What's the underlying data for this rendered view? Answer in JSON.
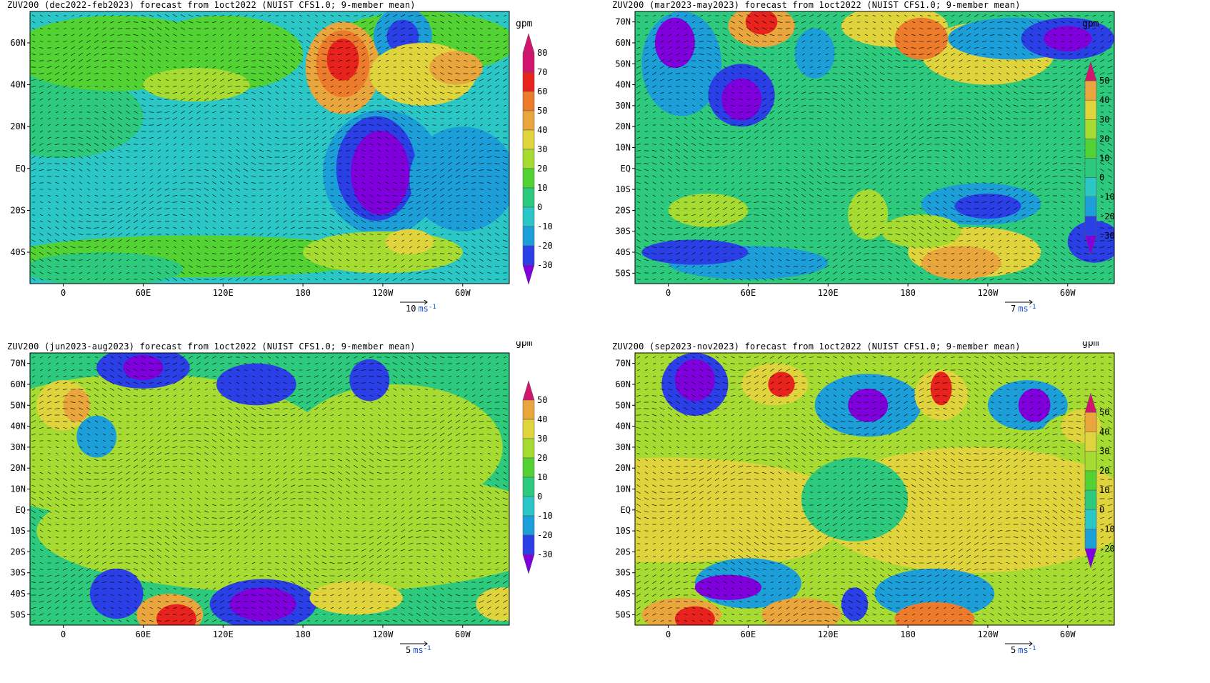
{
  "figure": {
    "panels": [
      {
        "title": "ZUV200 (dec2022-feb2023) forecast from 1oct2022 (NUIST CFS1.0; 9-member mean)",
        "unit": "gpm",
        "lat_labels": [
          "60N",
          "40N",
          "20N",
          "EQ",
          "20S",
          "40S"
        ],
        "lon_labels": [
          "0",
          "60E",
          "120E",
          "180",
          "120W",
          "60W"
        ],
        "colorbar_levels": [
          "80",
          "70",
          "60",
          "50",
          "40",
          "30",
          "20",
          "10",
          "0",
          "-10",
          "-20",
          "-30"
        ],
        "vector_ref": {
          "value": "10",
          "unit": "ms",
          "exponent": "-1"
        }
      },
      {
        "title": "ZUV200 (mar2023-may2023) forecast from 1oct2022 (NUIST CFS1.0; 9-member mean)",
        "unit": "gpm",
        "lat_labels": [
          "70N",
          "60N",
          "50N",
          "40N",
          "30N",
          "20N",
          "10N",
          "EQ",
          "10S",
          "20S",
          "30S",
          "40S",
          "50S"
        ],
        "lon_labels": [
          "0",
          "60E",
          "120E",
          "180",
          "120W",
          "60W"
        ],
        "colorbar_levels": [
          "50",
          "40",
          "30",
          "20",
          "10",
          "0",
          "-10",
          "-20",
          "-30"
        ],
        "vector_ref": {
          "value": "7",
          "unit": "ms",
          "exponent": "-1"
        }
      },
      {
        "title": "ZUV200 (jun2023-aug2023) forecast from 1oct2022 (NUIST CFS1.0; 9-member mean)",
        "unit": "gpm",
        "lat_labels": [
          "70N",
          "60N",
          "50N",
          "40N",
          "30N",
          "20N",
          "10N",
          "EQ",
          "10S",
          "20S",
          "30S",
          "40S",
          "50S"
        ],
        "lon_labels": [
          "0",
          "60E",
          "120E",
          "180",
          "120W",
          "60W"
        ],
        "colorbar_levels": [
          "50",
          "40",
          "30",
          "20",
          "10",
          "0",
          "-10",
          "-20",
          "-30"
        ],
        "vector_ref": {
          "value": "5",
          "unit": "ms",
          "exponent": "-1"
        }
      },
      {
        "title": "ZUV200 (sep2023-nov2023) forecast from 1oct2022 (NUIST CFS1.0; 9-member mean)",
        "unit": "gpm",
        "lat_labels": [
          "70N",
          "60N",
          "50N",
          "40N",
          "30N",
          "20N",
          "10N",
          "EQ",
          "10S",
          "20S",
          "30S",
          "40S",
          "50S"
        ],
        "lon_labels": [
          "0",
          "60E",
          "120E",
          "180",
          "120W",
          "60W"
        ],
        "colorbar_levels": [
          "50",
          "40",
          "30",
          "20",
          "10",
          "0",
          "-10",
          "-20"
        ],
        "vector_ref": {
          "value": "5",
          "unit": "ms",
          "exponent": "-1"
        }
      }
    ]
  },
  "colors": {
    "n30": "#7f00dc",
    "n20": "#2a3fe6",
    "n10": "#1c9fd8",
    "z0": "#2bc6c6",
    "p10": "#2dc97c",
    "p20": "#52d233",
    "p30": "#a6dc32",
    "p40": "#e0d43d",
    "p50": "#e9a63d",
    "p60": "#ec7c2c",
    "p70": "#e8221c",
    "p80": "#d2166f"
  },
  "map_style": {
    "background_level": "z0",
    "projection": "cylindrical equidistant"
  }
}
